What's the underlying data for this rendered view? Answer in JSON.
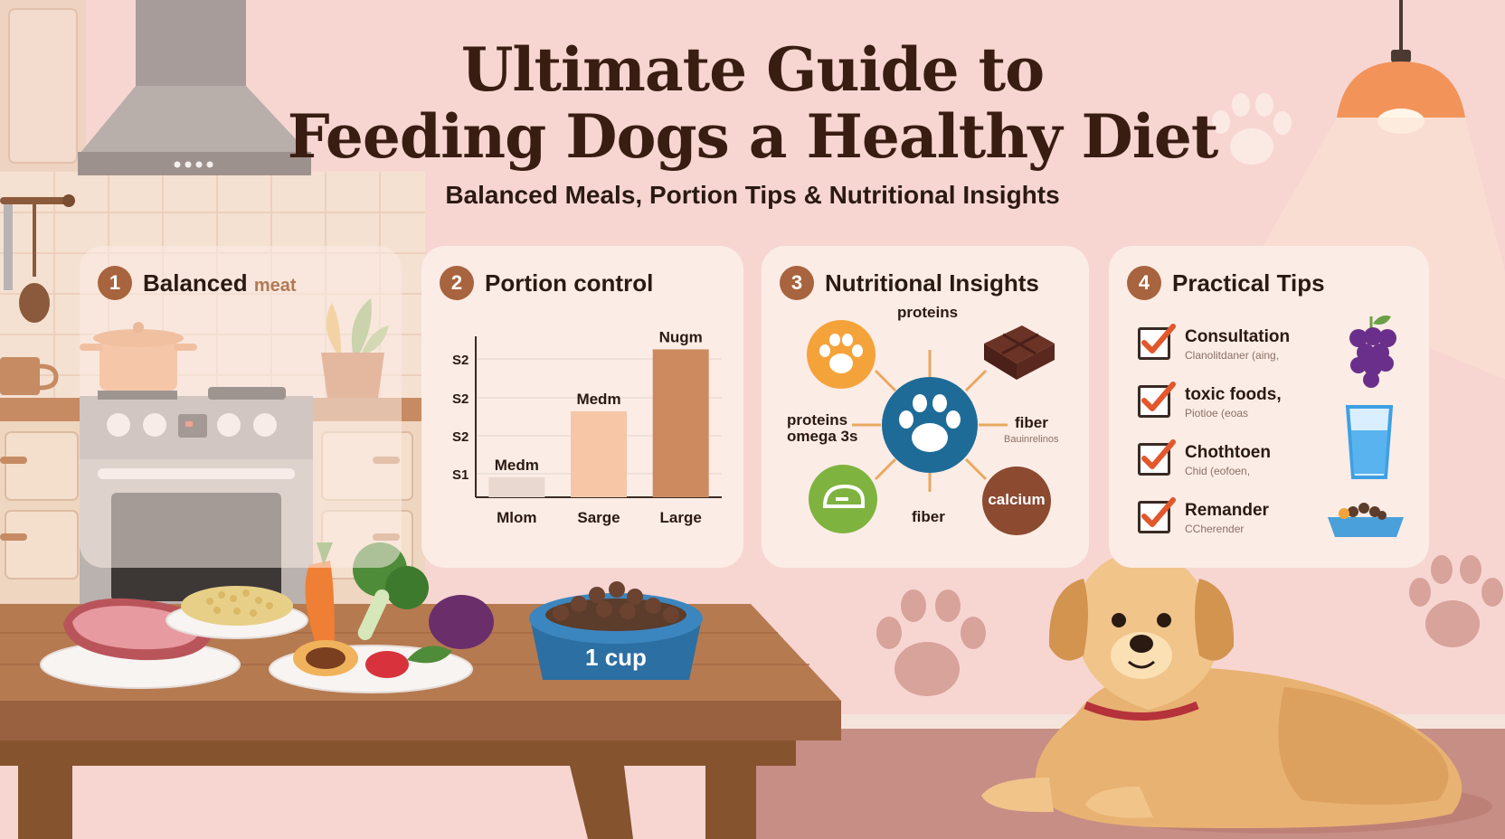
{
  "header": {
    "title_line1": "Ultimate Guide to",
    "title_line2": "Feeding Dogs a Healthy Diet",
    "subtitle": "Balanced Meals, Portion Tips & Nutritional Insights"
  },
  "cards": [
    {
      "number": "1",
      "title": "Balanced",
      "title_faint": "meat"
    },
    {
      "number": "2",
      "title": "Portion control"
    },
    {
      "number": "3",
      "title": "Nutritional Insights"
    },
    {
      "number": "4",
      "title": "Practical Tips"
    }
  ],
  "chart_data": {
    "type": "bar",
    "categories": [
      "Mlom",
      "Sarge",
      "Large"
    ],
    "bar_labels": [
      "Medm",
      "Medm",
      "Nugm"
    ],
    "values": [
      1,
      4.3,
      7.4
    ],
    "ytick_labels": [
      "S2",
      "S2",
      "S2",
      "S1"
    ],
    "colors": [
      "#e8d8d0",
      "#f6c6a6",
      "#cd8a5e"
    ]
  },
  "nutrition": {
    "center_icon": "paw-icon",
    "labels": {
      "top": "proteins",
      "left_line1": "proteins",
      "left_line2": "omega 3s",
      "right": "fiber",
      "right_sub": "Bauinrelinos",
      "bottom": "fiber",
      "calcium": "calcium"
    }
  },
  "tips": [
    {
      "title": "Consultation",
      "sub": "Clanolitdaner (aing,",
      "icon": "grapes-icon"
    },
    {
      "title": "toxic foods,",
      "sub": "Piotioe (eoas",
      "icon": "water-glass-icon"
    },
    {
      "title": "Chothtoen",
      "sub": "Chid (eofoen,",
      "icon": ""
    },
    {
      "title": "Remander",
      "sub": "CCherender",
      "icon": "food-bowl-icon"
    }
  ],
  "bowl": {
    "label": "1 cup"
  },
  "colors": {
    "background": "#f7d6d2",
    "card": "#fbece6",
    "accent": "#a8643e",
    "check": "#e2572c",
    "title": "#3a1d12"
  }
}
